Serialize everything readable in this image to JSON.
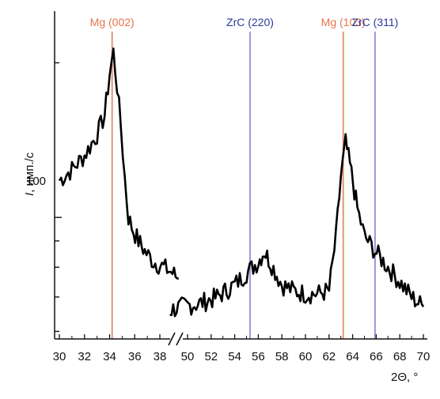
{
  "chart_data": {
    "type": "line",
    "title": "",
    "xlabel": "2Θ, °",
    "ylabel": "I, имп./с",
    "ylabel_italic_part": "I",
    "ylabel_rest": ", имп./с",
    "y_scale": "log",
    "y_tick_labels": [
      "100"
    ],
    "xlim": [
      30,
      70
    ],
    "axis_break": [
      39.5,
      48.5
    ],
    "x_ticks_left": [
      30,
      32,
      34,
      36,
      38
    ],
    "x_ticks_right": [
      50,
      52,
      54,
      56,
      58,
      60,
      62,
      64,
      66,
      68,
      70
    ],
    "x_tick_labels": [
      "30",
      "32",
      "34",
      "36",
      "38",
      "50",
      "52",
      "54",
      "56",
      "58",
      "60",
      "62",
      "64",
      "66",
      "68",
      "70"
    ],
    "reference_lines": [
      {
        "label": "Mg (002)",
        "x": 34.2,
        "color": "#e8734a"
      },
      {
        "label": "ZrC (220)",
        "x": 55.3,
        "color": "#2a3a9a"
      },
      {
        "label": "Mg (103)",
        "x": 63.2,
        "color": "#e8734a"
      },
      {
        "label": "ZrC (311)",
        "x": 65.9,
        "color": "#2a3a9a"
      }
    ],
    "series": [
      {
        "color": "#000000",
        "segments": [
          {
            "x": [
              30.0,
              31.0,
              32.0,
              33.0,
              33.6,
              34.0,
              34.3,
              34.6,
              34.9,
              35.2,
              35.5,
              35.9,
              36.3,
              36.8,
              37.5,
              38.3,
              39.0,
              39.5
            ],
            "y": [
              118,
              124,
              132,
              145,
              158,
              190,
              210,
              180,
              150,
              120,
              100,
              94,
              90,
              86,
              82,
              80,
              78,
              76
            ]
          },
          {
            "x": [
              48.5,
              49.5,
              51.0,
              52.5,
              54.0,
              55.0,
              56.0,
              56.5,
              57.0,
              58.0,
              59.0,
              60.0,
              61.0,
              62.0,
              62.6,
              63.0,
              63.4,
              63.9,
              64.4,
              65.0,
              65.9,
              67.0,
              68.0,
              69.0,
              70.0
            ],
            "y": [
              66,
              67,
              68,
              70,
              74,
              78,
              82,
              86,
              82,
              74,
              72,
              71,
              71,
              72,
              92,
              120,
              140,
              122,
              104,
              92,
              86,
              80,
              75,
              70,
              67
            ]
          }
        ]
      }
    ]
  },
  "colors": {
    "orange": "#e8734a",
    "blue": "#2a3a9a",
    "blue_line": "#8e92d6",
    "orange_line": "#e58a66",
    "curve": "#000000",
    "axis": "#111111"
  }
}
